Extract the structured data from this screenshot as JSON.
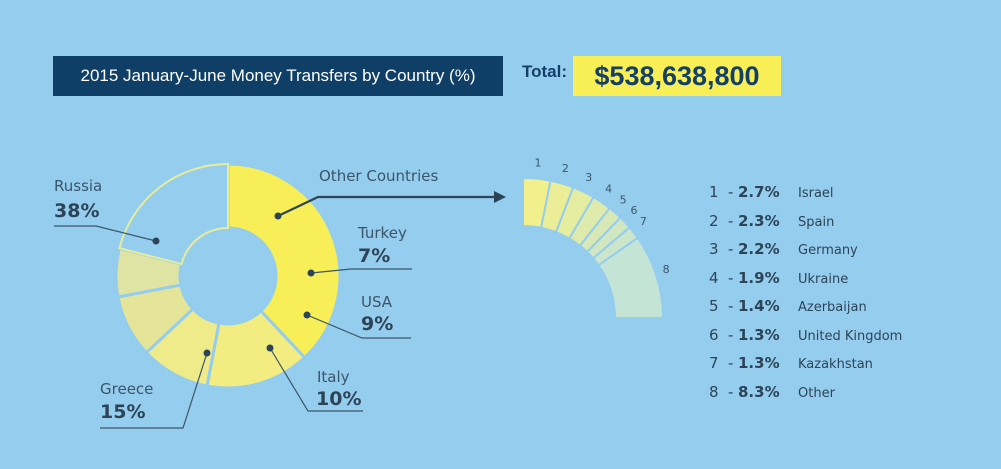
{
  "title": "2015 January-June Money Transfers by Country (%)",
  "total": {
    "label": "Total:",
    "value": "$538,638,800"
  },
  "colors": {
    "background": "#95cdef",
    "title_bg": "#0f3f66",
    "total_bg": "#f7ef55",
    "text": "#2d4457"
  },
  "chart_data": [
    {
      "type": "pie",
      "style": "donut",
      "slices": [
        {
          "label": "Russia",
          "value": 38,
          "display": "38%",
          "color": "#f7ee58"
        },
        {
          "label": "Greece",
          "value": 15,
          "display": "15%",
          "color": "#f3ec80"
        },
        {
          "label": "Italy",
          "value": 10,
          "display": "10%",
          "color": "#efeb8b"
        },
        {
          "label": "USA",
          "value": 9,
          "display": "9%",
          "color": "#e5e59a"
        },
        {
          "label": "Turkey",
          "value": 7,
          "display": "7%",
          "color": "#dfe3a4"
        },
        {
          "label": "Other Countries",
          "value": 21,
          "display": "",
          "color": "#95cdef"
        }
      ]
    },
    {
      "type": "pie",
      "style": "arc-breakdown",
      "items": [
        {
          "index": "1",
          "value": 2.7,
          "display": "2.7%",
          "label": "Israel"
        },
        {
          "index": "2",
          "value": 2.3,
          "display": "2.3%",
          "label": "Spain"
        },
        {
          "index": "3",
          "value": 2.2,
          "display": "2.2%",
          "label": "Germany"
        },
        {
          "index": "4",
          "value": 1.9,
          "display": "1.9%",
          "label": "Ukraine"
        },
        {
          "index": "5",
          "value": 1.4,
          "display": "1.4%",
          "label": "Azerbaijan"
        },
        {
          "index": "6",
          "value": 1.3,
          "display": "1.3%",
          "label": "United Kingdom"
        },
        {
          "index": "7",
          "value": 1.3,
          "display": "1.3%",
          "label": "Kazakhstan"
        },
        {
          "index": "8",
          "value": 8.3,
          "display": "8.3%",
          "label": "Other"
        }
      ]
    }
  ]
}
